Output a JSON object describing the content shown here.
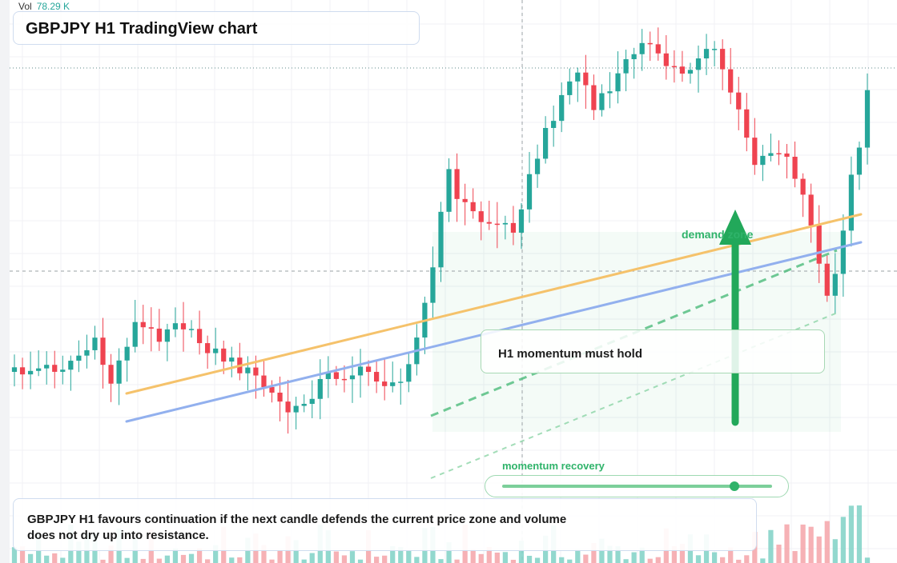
{
  "volume": {
    "label": "Vol",
    "value": "78.29 K"
  },
  "title": "GBPJPY H1 TradingView chart",
  "colors": {
    "bull": "#26a69a",
    "bear": "#ef4350",
    "bull_vol": "#7fd1c6",
    "bear_vol": "#f4a3a8",
    "trend_orange": "#f5c26b",
    "trend_blue": "#92b0ee",
    "accent_green": "#22a85a"
  },
  "annotations": {
    "callout": "H1 momentum must hold",
    "zone_label": "demand zone",
    "meter_label": "momentum recovery",
    "summary": "GBPJPY H1 favours continuation if the next candle defends the current price zone and volume does not dry up into resistance."
  },
  "chart_data": {
    "type": "candlestick",
    "symbol": "GBPJPY",
    "timeframe": "H1",
    "candle_count": 107,
    "close_range_description": "rally from a base near the lower range to a peak, pullback, then recovery",
    "momentum_level": 0.86
  }
}
